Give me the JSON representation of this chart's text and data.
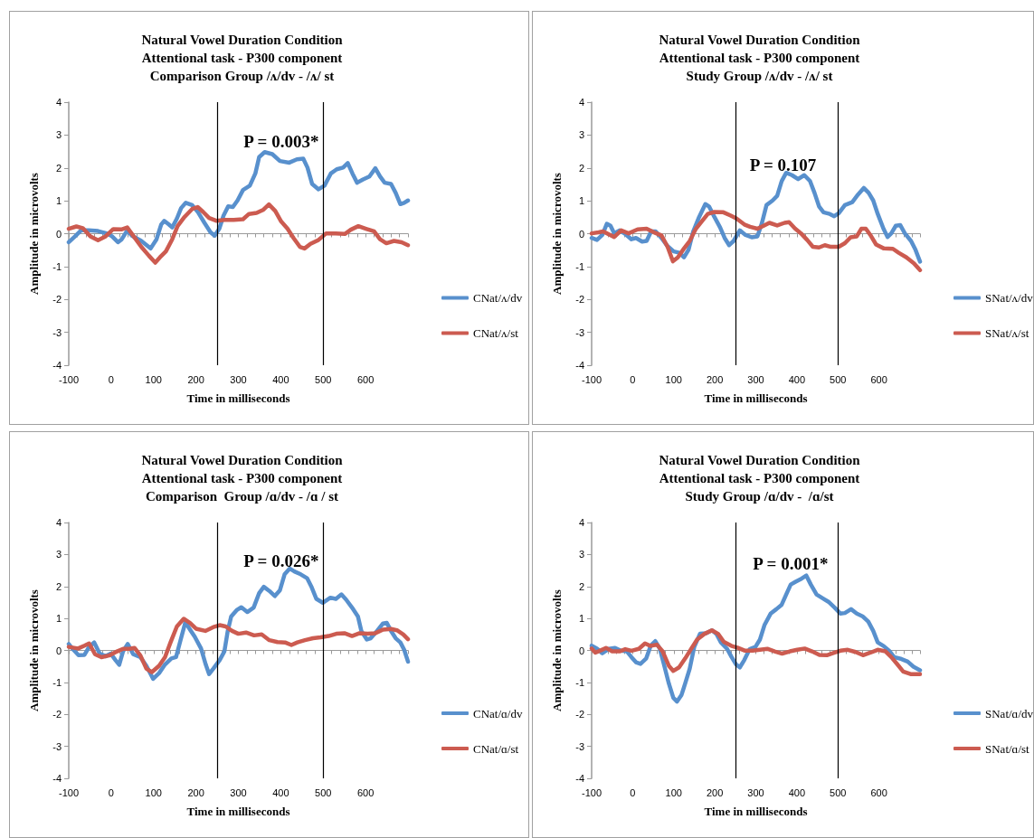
{
  "chart_data": [
    {
      "type": "line",
      "title": "Natural Vowel Duration Condition\nAttentional task - P300 component\nComparison Group /ʌ/dv - /ʌ/ st",
      "xlabel": "Time in milliseconds",
      "ylabel": "Amplitude in microvolts",
      "annotations": [
        "P = 0.003*"
      ],
      "xlim": [
        -100,
        700
      ],
      "xticks": [
        -100,
        0,
        100,
        200,
        300,
        400,
        500,
        600
      ],
      "ylim": [
        -4,
        4
      ],
      "yticks": [
        -4,
        -3,
        -2,
        -1,
        0,
        1,
        2,
        3,
        4
      ],
      "legend": "right",
      "marker": "none",
      "ref_lines": [
        {
          "axis": "x",
          "value": 250,
          "color": "#000000"
        },
        {
          "axis": "x",
          "value": 500,
          "color": "#000000"
        }
      ],
      "series": [
        {
          "name": "CNat/ʌ/dv",
          "color": "#5890cd",
          "x": [
            -100,
            -85,
            -71,
            -53,
            -31,
            -9,
            2,
            16,
            25,
            38,
            49,
            71,
            93,
            107,
            118,
            125,
            136,
            144,
            155,
            165,
            176,
            191,
            205,
            220,
            234,
            244,
            255,
            265,
            276,
            287,
            298,
            311,
            327,
            340,
            349,
            362,
            380,
            398,
            420,
            438,
            453,
            463,
            474,
            489,
            503,
            518,
            532,
            547,
            558,
            569,
            580,
            594,
            609,
            623,
            634,
            645,
            660,
            671,
            682,
            691,
            700
          ],
          "values": [
            -0.26,
            -0.08,
            0.1,
            0.1,
            0.08,
            0,
            -0.08,
            -0.26,
            -0.17,
            0.1,
            -0.06,
            -0.22,
            -0.45,
            -0.17,
            0.28,
            0.39,
            0.28,
            0.19,
            0.46,
            0.78,
            0.94,
            0.87,
            0.65,
            0.33,
            0.05,
            -0.06,
            0.15,
            0.55,
            0.83,
            0.81,
            1.01,
            1.33,
            1.46,
            1.83,
            2.33,
            2.48,
            2.42,
            2.21,
            2.16,
            2.26,
            2.28,
            2.01,
            1.51,
            1.35,
            1.46,
            1.83,
            1.96,
            2.01,
            2.15,
            1.83,
            1.55,
            1.65,
            1.74,
            1.99,
            1.74,
            1.55,
            1.51,
            1.24,
            0.9,
            0.94,
            1.01
          ]
        },
        {
          "name": "CNat/ʌ/st",
          "color": "#cc5b50",
          "x": [
            -100,
            -82,
            -67,
            -49,
            -31,
            -13,
            5,
            24,
            38,
            53,
            71,
            89,
            104,
            115,
            129,
            144,
            157,
            173,
            191,
            204,
            217,
            231,
            249,
            267,
            289,
            311,
            325,
            343,
            358,
            372,
            387,
            401,
            416,
            430,
            445,
            456,
            470,
            489,
            507,
            529,
            551,
            565,
            583,
            601,
            620,
            634,
            649,
            667,
            685,
            700
          ],
          "values": [
            0.15,
            0.22,
            0.17,
            -0.08,
            -0.2,
            -0.08,
            0.14,
            0.13,
            0.19,
            -0.08,
            -0.4,
            -0.67,
            -0.88,
            -0.72,
            -0.54,
            -0.17,
            0.24,
            0.51,
            0.75,
            0.81,
            0.66,
            0.48,
            0.39,
            0.42,
            0.42,
            0.44,
            0.6,
            0.63,
            0.72,
            0.89,
            0.69,
            0.37,
            0.15,
            -0.13,
            -0.4,
            -0.45,
            -0.31,
            -0.19,
            0.01,
            0.01,
            -0.01,
            0.12,
            0.23,
            0.15,
            0.07,
            -0.17,
            -0.29,
            -0.22,
            -0.26,
            -0.35
          ]
        }
      ]
    },
    {
      "type": "line",
      "title": "Natural Vowel Duration Condition\nAttentional task - P300 component\nStudy Group /ʌ/dv - /ʌ/ st",
      "xlabel": "Time in milliseconds",
      "ylabel": "Amplitude in microvolts",
      "annotations": [
        "P = 0.107"
      ],
      "xlim": [
        -100,
        700
      ],
      "xticks": [
        -100,
        0,
        100,
        200,
        300,
        400,
        500,
        600
      ],
      "ylim": [
        -4,
        4
      ],
      "yticks": [
        -4,
        -3,
        -2,
        -1,
        0,
        1,
        2,
        3,
        4
      ],
      "legend": "right",
      "marker": "none",
      "ref_lines": [
        {
          "axis": "x",
          "value": 250,
          "color": "#000000"
        },
        {
          "axis": "x",
          "value": 500,
          "color": "#000000"
        }
      ],
      "series": [
        {
          "name": "SNat/ʌ/dv",
          "color": "#5890cd",
          "x": [
            -100,
            -87,
            -74,
            -63,
            -54,
            -45,
            -32,
            -17,
            -3,
            8,
            23,
            34,
            45,
            56,
            70,
            85,
            100,
            114,
            125,
            136,
            147,
            162,
            177,
            186,
            199,
            213,
            224,
            235,
            246,
            261,
            275,
            290,
            304,
            315,
            326,
            341,
            352,
            363,
            374,
            388,
            403,
            418,
            432,
            443,
            454,
            465,
            480,
            491,
            502,
            517,
            535,
            549,
            563,
            575,
            586,
            597,
            611,
            621,
            630,
            641,
            652,
            663,
            678,
            689,
            700
          ],
          "values": [
            -0.13,
            -0.19,
            -0.04,
            0.3,
            0.24,
            0.01,
            0.1,
            -0.02,
            -0.17,
            -0.13,
            -0.24,
            -0.22,
            0.07,
            0.07,
            -0.13,
            -0.38,
            -0.54,
            -0.58,
            -0.72,
            -0.49,
            0.05,
            0.51,
            0.9,
            0.83,
            0.51,
            0.19,
            -0.13,
            -0.35,
            -0.22,
            0.1,
            -0.04,
            -0.11,
            -0.08,
            0.33,
            0.87,
            1.01,
            1.15,
            1.6,
            1.85,
            1.78,
            1.66,
            1.78,
            1.6,
            1.24,
            0.83,
            0.65,
            0.6,
            0.53,
            0.62,
            0.87,
            0.96,
            1.19,
            1.39,
            1.24,
            1.01,
            0.6,
            0.15,
            -0.1,
            0.01,
            0.24,
            0.26,
            0.01,
            -0.22,
            -0.49,
            -0.85
          ]
        },
        {
          "name": "SNat/ʌ/st",
          "color": "#cc5b50",
          "x": [
            -100,
            -83,
            -72,
            -58,
            -45,
            -28,
            -10,
            12,
            34,
            52,
            70,
            85,
            98,
            110,
            125,
            139,
            154,
            168,
            183,
            199,
            221,
            239,
            253,
            272,
            286,
            304,
            319,
            333,
            352,
            370,
            381,
            396,
            410,
            425,
            439,
            454,
            468,
            483,
            502,
            517,
            531,
            546,
            557,
            568,
            579,
            593,
            612,
            634,
            648,
            667,
            685,
            700
          ],
          "values": [
            0.01,
            0.04,
            0.07,
            -0.02,
            -0.1,
            0.1,
            0.01,
            0.13,
            0.15,
            0.04,
            -0.05,
            -0.4,
            -0.84,
            -0.72,
            -0.45,
            -0.22,
            0.15,
            0.37,
            0.6,
            0.66,
            0.65,
            0.55,
            0.46,
            0.28,
            0.21,
            0.15,
            0.24,
            0.33,
            0.25,
            0.33,
            0.35,
            0.15,
            0.01,
            -0.19,
            -0.4,
            -0.42,
            -0.35,
            -0.4,
            -0.4,
            -0.29,
            -0.11,
            -0.08,
            0.15,
            0.15,
            -0.04,
            -0.33,
            -0.45,
            -0.46,
            -0.58,
            -0.72,
            -0.9,
            -1.11
          ]
        }
      ]
    },
    {
      "type": "line",
      "title": "Natural Vowel Duration Condition\nAttentional task - P300 component\nComparison  Group /ɑ/dv - /ɑ / st",
      "xlabel": "Time in milliseconds",
      "ylabel": "Amplitude in microvolts",
      "annotations": [
        "P = 0.026*"
      ],
      "xlim": [
        -100,
        700
      ],
      "xticks": [
        -100,
        0,
        100,
        200,
        300,
        400,
        500,
        600
      ],
      "ylim": [
        -4,
        4
      ],
      "yticks": [
        -4,
        -3,
        -2,
        -1,
        0,
        1,
        2,
        3,
        4
      ],
      "legend": "right",
      "marker": "none",
      "ref_lines": [
        {
          "axis": "x",
          "value": 250,
          "color": "#000000"
        },
        {
          "axis": "x",
          "value": 500,
          "color": "#000000"
        }
      ],
      "series": [
        {
          "name": "CNat/ɑ/dv",
          "color": "#5890cd",
          "x": [
            -100,
            -89,
            -77,
            -63,
            -52,
            -40,
            -27,
            -13,
            -1,
            10,
            19,
            28,
            39,
            52,
            69,
            83,
            99,
            113,
            127,
            142,
            153,
            164,
            175,
            186,
            197,
            212,
            223,
            231,
            241,
            256,
            267,
            275,
            283,
            296,
            307,
            321,
            336,
            349,
            360,
            373,
            386,
            398,
            409,
            421,
            432,
            447,
            462,
            473,
            484,
            499,
            517,
            530,
            543,
            554,
            568,
            582,
            590,
            603,
            612,
            627,
            641,
            650,
            660,
            671,
            682,
            691,
            700
          ],
          "values": [
            0.2,
            0.02,
            -0.15,
            -0.14,
            0.11,
            0.25,
            -0.1,
            -0.18,
            -0.1,
            -0.3,
            -0.45,
            -0.03,
            0.2,
            -0.12,
            -0.21,
            -0.48,
            -0.89,
            -0.71,
            -0.44,
            -0.25,
            -0.21,
            0.34,
            0.88,
            0.65,
            0.43,
            0.06,
            -0.44,
            -0.74,
            -0.57,
            -0.3,
            -0.03,
            0.61,
            1.06,
            1.26,
            1.35,
            1.2,
            1.34,
            1.79,
            1.99,
            1.86,
            1.7,
            1.88,
            2.38,
            2.56,
            2.47,
            2.38,
            2.26,
            1.97,
            1.61,
            1.49,
            1.65,
            1.61,
            1.75,
            1.59,
            1.34,
            1.06,
            0.61,
            0.34,
            0.38,
            0.61,
            0.84,
            0.86,
            0.61,
            0.38,
            0.25,
            0.02,
            -0.35
          ]
        },
        {
          "name": "CNat/ɑ/st",
          "color": "#cc5b50",
          "x": [
            -100,
            -78,
            -63,
            -52,
            -38,
            -23,
            -5,
            14,
            28,
            43,
            55,
            69,
            83,
            96,
            113,
            127,
            140,
            155,
            171,
            186,
            200,
            222,
            241,
            256,
            270,
            285,
            300,
            318,
            337,
            355,
            373,
            392,
            410,
            425,
            439,
            457,
            476,
            494,
            513,
            531,
            550,
            568,
            586,
            605,
            623,
            641,
            660,
            674,
            689,
            700
          ],
          "values": [
            0.11,
            0.06,
            0.15,
            0.22,
            -0.12,
            -0.21,
            -0.16,
            -0.03,
            0.05,
            0.05,
            0.08,
            -0.16,
            -0.57,
            -0.68,
            -0.48,
            -0.21,
            0.25,
            0.75,
            0.99,
            0.86,
            0.68,
            0.61,
            0.73,
            0.79,
            0.75,
            0.61,
            0.52,
            0.56,
            0.47,
            0.5,
            0.32,
            0.26,
            0.25,
            0.17,
            0.25,
            0.32,
            0.38,
            0.41,
            0.45,
            0.52,
            0.54,
            0.45,
            0.54,
            0.52,
            0.54,
            0.65,
            0.67,
            0.63,
            0.5,
            0.35
          ]
        }
      ]
    },
    {
      "type": "line",
      "title": "Natural Vowel Duration Condition\nAttentional task - P300 component\nStudy Group /ɑ/dv -  /ɑ/st",
      "xlabel": "Time in milliseconds",
      "ylabel": "Amplitude in microvolts",
      "annotations": [
        "P = 0.001*"
      ],
      "xlim": [
        -100,
        700
      ],
      "xticks": [
        -100,
        0,
        100,
        200,
        300,
        400,
        500,
        600
      ],
      "ylim": [
        -4,
        4
      ],
      "yticks": [
        -4,
        -3,
        -2,
        -1,
        0,
        1,
        2,
        3,
        4
      ],
      "legend": "right",
      "marker": "none",
      "ref_lines": [
        {
          "axis": "x",
          "value": 250,
          "color": "#000000"
        },
        {
          "axis": "x",
          "value": 500,
          "color": "#000000"
        }
      ],
      "series": [
        {
          "name": "SNat/ɑ/dv",
          "color": "#5890cd",
          "x": [
            -100,
            -87,
            -74,
            -58,
            -43,
            -29,
            -14,
            -3,
            8,
            19,
            33,
            44,
            55,
            66,
            77,
            88,
            99,
            108,
            119,
            128,
            139,
            150,
            164,
            179,
            193,
            204,
            215,
            230,
            241,
            252,
            261,
            272,
            285,
            299,
            310,
            321,
            336,
            350,
            363,
            374,
            385,
            397,
            412,
            423,
            434,
            448,
            463,
            477,
            492,
            506,
            517,
            532,
            546,
            561,
            574,
            586,
            597,
            612,
            625,
            637,
            655,
            670,
            684,
            700
          ],
          "values": [
            0.15,
            0.06,
            -0.09,
            0.05,
            0.08,
            -0.01,
            -0.03,
            -0.21,
            -0.37,
            -0.42,
            -0.25,
            0.15,
            0.29,
            0.06,
            -0.48,
            -1.03,
            -1.48,
            -1.6,
            -1.39,
            -1.03,
            -0.57,
            0.11,
            0.52,
            0.54,
            0.63,
            0.52,
            0.25,
            0.05,
            -0.21,
            -0.44,
            -0.53,
            -0.3,
            0.04,
            0.11,
            0.34,
            0.79,
            1.15,
            1.29,
            1.43,
            1.75,
            2.06,
            2.15,
            2.25,
            2.34,
            2.06,
            1.75,
            1.63,
            1.52,
            1.34,
            1.15,
            1.17,
            1.29,
            1.15,
            1.06,
            0.9,
            0.61,
            0.25,
            0.13,
            -0.01,
            -0.21,
            -0.27,
            -0.35,
            -0.51,
            -0.62
          ]
        },
        {
          "name": "SNat/ɑ/st",
          "color": "#cc5b50",
          "x": [
            -100,
            -91,
            -80,
            -65,
            -50,
            -32,
            -18,
            -3,
            15,
            30,
            43,
            59,
            73,
            88,
            99,
            113,
            128,
            143,
            157,
            175,
            193,
            208,
            222,
            241,
            255,
            274,
            292,
            310,
            328,
            346,
            364,
            383,
            401,
            419,
            437,
            455,
            473,
            492,
            506,
            524,
            543,
            561,
            579,
            597,
            616,
            630,
            645,
            659,
            677,
            700
          ],
          "values": [
            0.06,
            -0.07,
            -0.01,
            0.08,
            -0.03,
            -0.03,
            0.04,
            -0.01,
            0.05,
            0.22,
            0.14,
            0.18,
            -0.03,
            -0.48,
            -0.64,
            -0.53,
            -0.25,
            0.06,
            0.34,
            0.52,
            0.63,
            0.52,
            0.27,
            0.14,
            0.09,
            -0.01,
            -0.01,
            0.02,
            0.05,
            -0.03,
            -0.1,
            -0.03,
            0.02,
            0.06,
            -0.03,
            -0.14,
            -0.15,
            -0.07,
            -0.01,
            0.02,
            -0.05,
            -0.15,
            -0.07,
            0.02,
            -0.03,
            -0.21,
            -0.44,
            -0.66,
            -0.74,
            -0.74
          ]
        }
      ]
    }
  ]
}
